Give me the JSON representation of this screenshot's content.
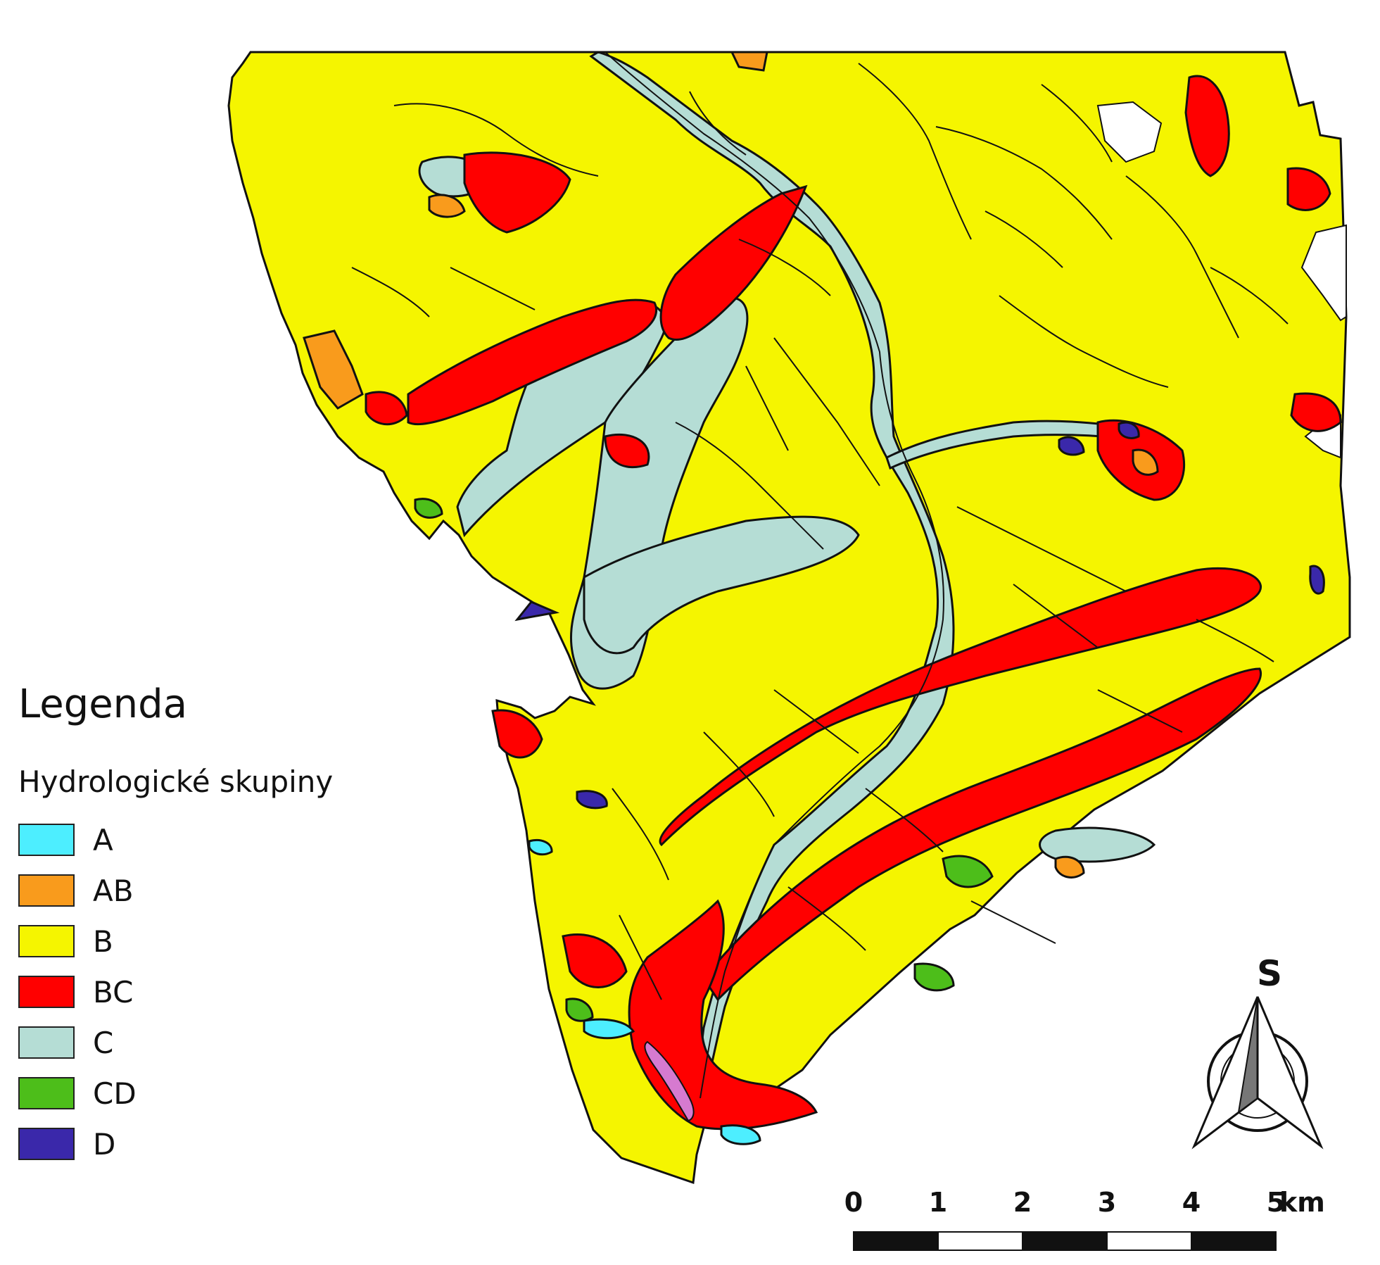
{
  "legend": {
    "title": "Legenda",
    "subtitle": "Hydrologické skupiny",
    "items": [
      {
        "label": "A",
        "color": "#4deeff"
      },
      {
        "label": "AB",
        "color": "#f99b1c"
      },
      {
        "label": "B",
        "color": "#f5f500"
      },
      {
        "label": "BC",
        "color": "#ff0000"
      },
      {
        "label": "C",
        "color": "#b5ddd5"
      },
      {
        "label": "CD",
        "color": "#4dbe1a"
      },
      {
        "label": "D",
        "color": "#3a28aa"
      }
    ]
  },
  "north_arrow": {
    "label": "S"
  },
  "scale_bar": {
    "ticks": [
      "0",
      "1",
      "2",
      "3",
      "4",
      "5"
    ],
    "unit": "km"
  },
  "colors": {
    "A": "#4deeff",
    "AB": "#f99b1c",
    "B": "#f5f500",
    "BC": "#ff0000",
    "C": "#b5ddd5",
    "CD": "#4dbe1a",
    "D": "#3a28aa",
    "other": "#d67ad0",
    "outline": "#111111"
  }
}
